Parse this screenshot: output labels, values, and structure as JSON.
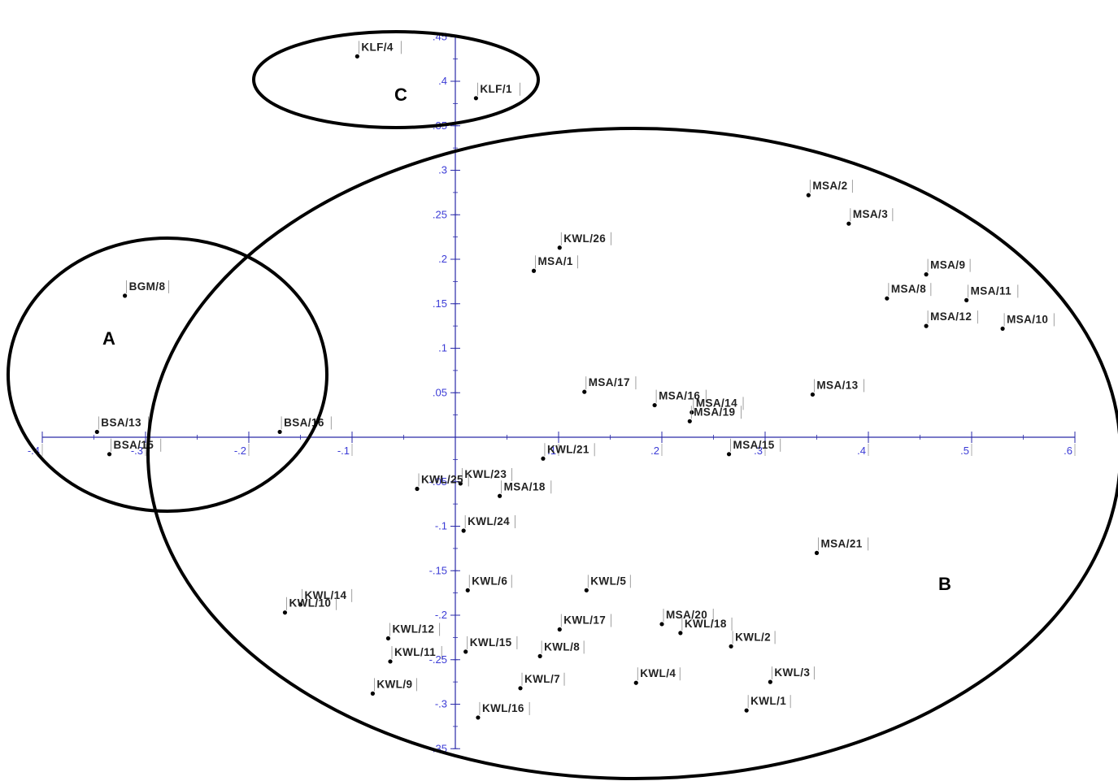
{
  "chart_data": {
    "type": "scatter",
    "title": "",
    "xlabel": "",
    "ylabel": "",
    "xlim": [
      -0.4,
      0.6
    ],
    "ylim": [
      -0.35,
      0.45
    ],
    "x_tick_labels": [
      "-.4",
      "-.3",
      "-.2",
      "-.1",
      ".1",
      ".2",
      ".3",
      ".4",
      ".5",
      ".6"
    ],
    "y_tick_labels": [
      ".45",
      ".4",
      ".35",
      ".3",
      ".25",
      ".2",
      ".15",
      ".1",
      ".05",
      "-.05",
      "-.1",
      "-.15",
      "-.2",
      "-.25",
      "-.3",
      "-.35"
    ],
    "groups": [
      {
        "name": "A",
        "members": [
          "BGM/8",
          "BSA/13",
          "BSA/15",
          "BSA/16"
        ]
      },
      {
        "name": "B",
        "members": [
          "MSA",
          "KWL"
        ]
      },
      {
        "name": "C",
        "members": [
          "KLF/4",
          "KLF/1"
        ]
      }
    ],
    "points": [
      {
        "label": "KLF/4",
        "x": -0.095,
        "y": 0.428
      },
      {
        "label": "KLF/1",
        "x": 0.02,
        "y": 0.381
      },
      {
        "label": "BGM/8",
        "x": -0.32,
        "y": 0.159
      },
      {
        "label": "BSA/13",
        "x": -0.347,
        "y": 0.006
      },
      {
        "label": "BSA/15",
        "x": -0.335,
        "y": -0.019
      },
      {
        "label": "BSA/16",
        "x": -0.17,
        "y": 0.006
      },
      {
        "label": "MSA/2",
        "x": 0.342,
        "y": 0.272
      },
      {
        "label": "MSA/3",
        "x": 0.381,
        "y": 0.24
      },
      {
        "label": "KWL/26",
        "x": 0.101,
        "y": 0.213
      },
      {
        "label": "MSA/1",
        "x": 0.076,
        "y": 0.187
      },
      {
        "label": "MSA/9",
        "x": 0.456,
        "y": 0.183
      },
      {
        "label": "MSA/8",
        "x": 0.418,
        "y": 0.156
      },
      {
        "label": "MSA/11",
        "x": 0.495,
        "y": 0.154
      },
      {
        "label": "MSA/12",
        "x": 0.456,
        "y": 0.125
      },
      {
        "label": "MSA/10",
        "x": 0.53,
        "y": 0.122
      },
      {
        "label": "MSA/17",
        "x": 0.125,
        "y": 0.051
      },
      {
        "label": "MSA/13",
        "x": 0.346,
        "y": 0.048
      },
      {
        "label": "MSA/16",
        "x": 0.193,
        "y": 0.036
      },
      {
        "label": "MSA/14",
        "x": 0.229,
        "y": 0.028
      },
      {
        "label": "MSA/19",
        "x": 0.227,
        "y": 0.018
      },
      {
        "label": "KWL/21",
        "x": 0.085,
        "y": -0.024
      },
      {
        "label": "MSA/15",
        "x": 0.265,
        "y": -0.019
      },
      {
        "label": "KWL/23",
        "x": 0.005,
        "y": -0.052
      },
      {
        "label": "KWL/25",
        "x": -0.037,
        "y": -0.058
      },
      {
        "label": "MSA/18",
        "x": 0.043,
        "y": -0.066
      },
      {
        "label": "KWL/24",
        "x": 0.008,
        "y": -0.105
      },
      {
        "label": "MSA/21",
        "x": 0.35,
        "y": -0.13
      },
      {
        "label": "KWL/6",
        "x": 0.012,
        "y": -0.172
      },
      {
        "label": "KWL/5",
        "x": 0.127,
        "y": -0.172
      },
      {
        "label": "KWL/14",
        "x": -0.15,
        "y": -0.188
      },
      {
        "label": "KWL/10",
        "x": -0.165,
        "y": -0.197
      },
      {
        "label": "MSA/20",
        "x": 0.2,
        "y": -0.21
      },
      {
        "label": "KWL/17",
        "x": 0.101,
        "y": -0.216
      },
      {
        "label": "KWL/18",
        "x": 0.218,
        "y": -0.22
      },
      {
        "label": "KWL/12",
        "x": -0.065,
        "y": -0.226
      },
      {
        "label": "KWL/2",
        "x": 0.267,
        "y": -0.235
      },
      {
        "label": "KWL/15",
        "x": 0.01,
        "y": -0.241
      },
      {
        "label": "KWL/8",
        "x": 0.082,
        "y": -0.246
      },
      {
        "label": "KWL/11",
        "x": -0.063,
        "y": -0.252
      },
      {
        "label": "KWL/3",
        "x": 0.305,
        "y": -0.275
      },
      {
        "label": "KWL/4",
        "x": 0.175,
        "y": -0.276
      },
      {
        "label": "KWL/7",
        "x": 0.063,
        "y": -0.282
      },
      {
        "label": "KWL/9",
        "x": -0.08,
        "y": -0.288
      },
      {
        "label": "KWL/1",
        "x": 0.282,
        "y": -0.307
      },
      {
        "label": "KWL/16",
        "x": 0.022,
        "y": -0.315
      }
    ]
  }
}
